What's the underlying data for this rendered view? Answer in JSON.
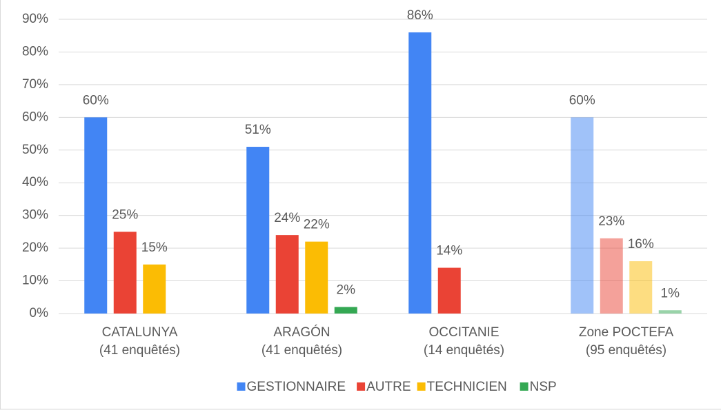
{
  "chart_data": {
    "type": "bar",
    "categories": [
      [
        "CATALUNYA",
        "(41 enquêtés)"
      ],
      [
        "ARAGÓN",
        "(41 enquêtés)"
      ],
      [
        "OCCITANIE",
        "(14 enquêtés)"
      ],
      [
        "Zone POCTEFA",
        "(95 enquêtés)"
      ]
    ],
    "category_opacity": [
      1,
      1,
      1,
      0.5
    ],
    "series": [
      {
        "name": "GESTIONNAIRE",
        "color": "#4285f4",
        "values": [
          60,
          51,
          86,
          60
        ],
        "value_labels": [
          "60%",
          "51%",
          "86%",
          "60%"
        ]
      },
      {
        "name": "AUTRE",
        "color": "#ea4335",
        "values": [
          25,
          24,
          14,
          23
        ],
        "value_labels": [
          "25%",
          "24%",
          "14%",
          "23%"
        ]
      },
      {
        "name": "TECHNICIEN",
        "color": "#fbbc04",
        "values": [
          15,
          22,
          null,
          16
        ],
        "value_labels": [
          "15%",
          "22%",
          null,
          "16%"
        ]
      },
      {
        "name": "NSP",
        "color": "#34a853",
        "values": [
          null,
          2,
          null,
          1
        ],
        "value_labels": [
          null,
          "2%",
          null,
          "1%"
        ]
      }
    ],
    "ylim": [
      0,
      90
    ],
    "yticks": [
      {
        "value": 0,
        "label": "0%"
      },
      {
        "value": 10,
        "label": "10%"
      },
      {
        "value": 20,
        "label": "20%"
      },
      {
        "value": 30,
        "label": "30%"
      },
      {
        "value": 40,
        "label": "40%"
      },
      {
        "value": 50,
        "label": "50%"
      },
      {
        "value": 60,
        "label": "60%"
      },
      {
        "value": 70,
        "label": "70%"
      },
      {
        "value": 80,
        "label": "80%"
      },
      {
        "value": 90,
        "label": "90%"
      }
    ],
    "grid": true,
    "legend": "bottom"
  }
}
